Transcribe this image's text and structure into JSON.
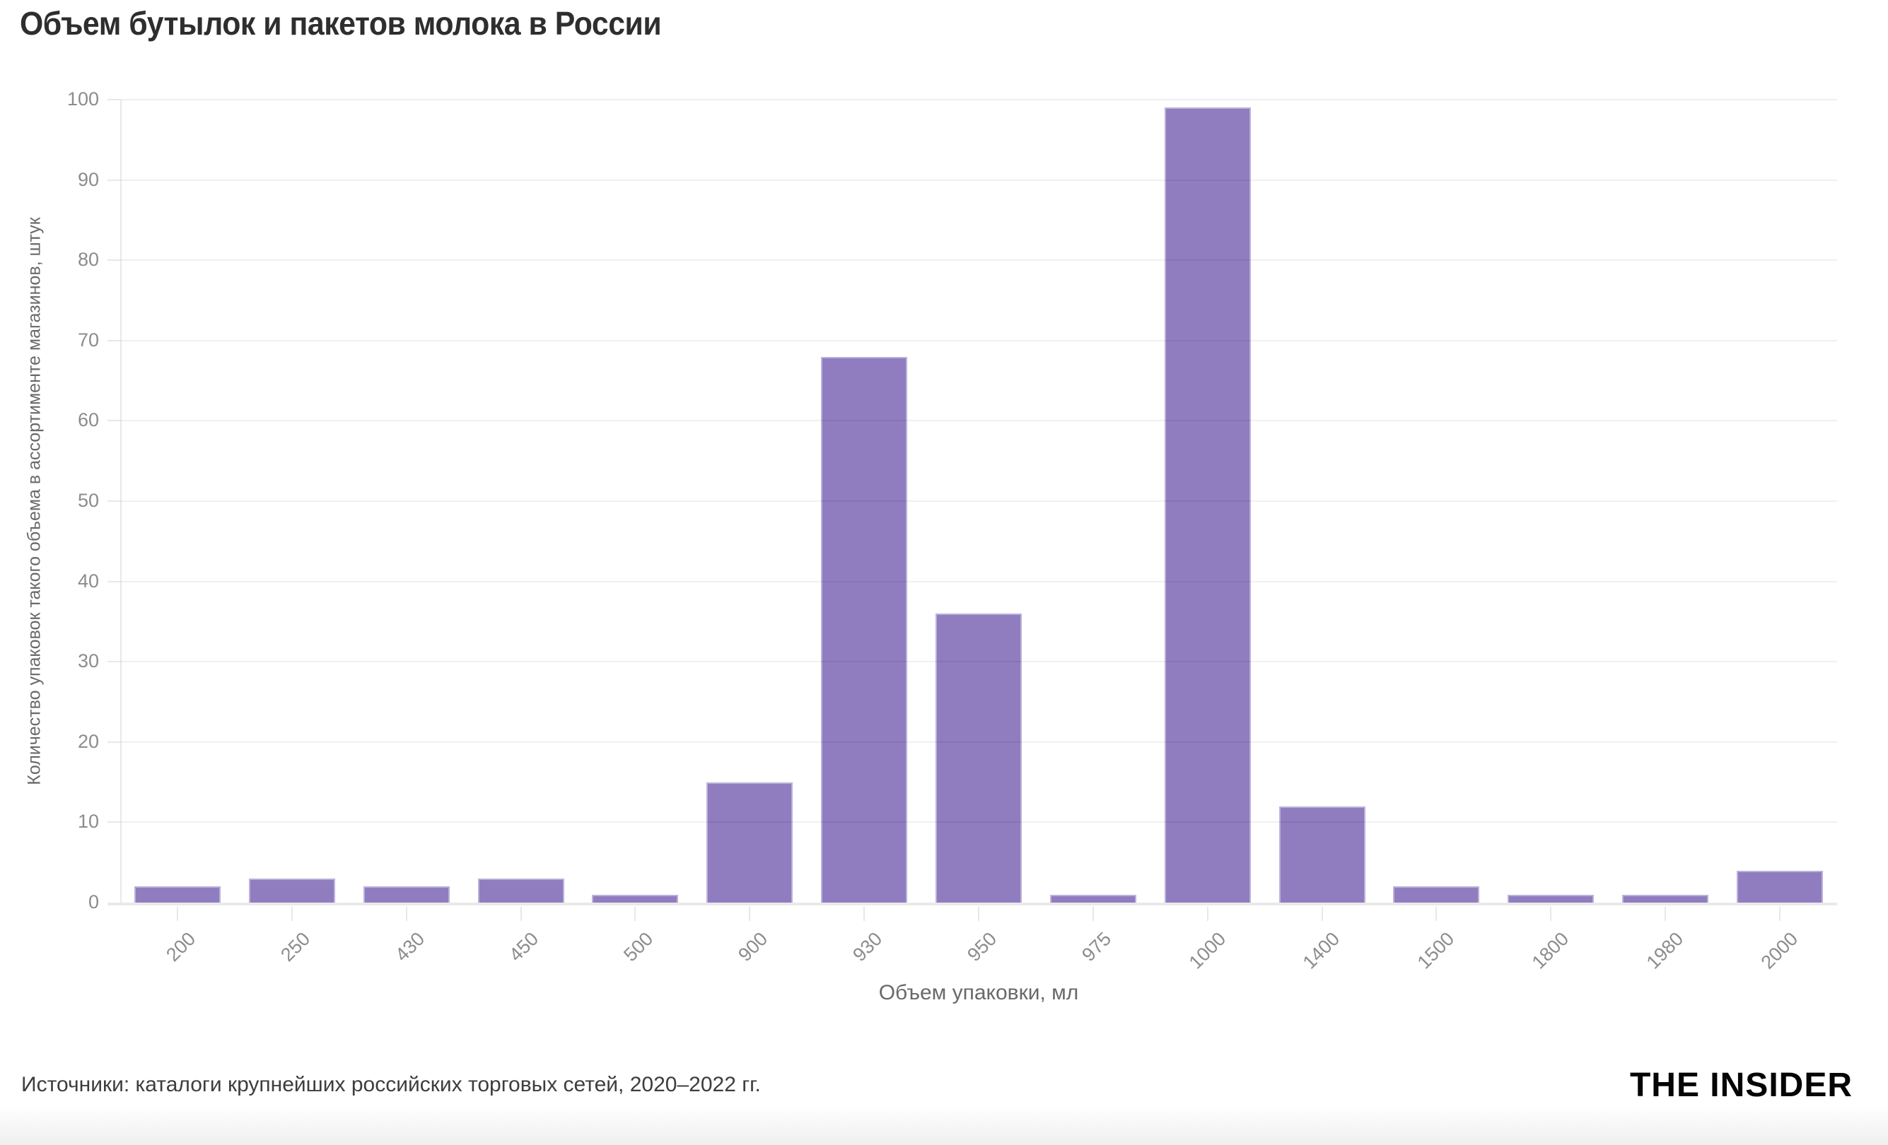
{
  "chart_data": {
    "type": "bar",
    "title": "Объем бутылок и пакетов молока в России",
    "categories": [
      "200",
      "250",
      "430",
      "450",
      "500",
      "900",
      "930",
      "950",
      "975",
      "1000",
      "1400",
      "1500",
      "1800",
      "1980",
      "2000"
    ],
    "values": [
      2,
      3,
      2,
      3,
      1,
      15,
      68,
      36,
      1,
      99,
      12,
      2,
      1,
      1,
      4
    ],
    "xlabel": "Объем упаковки, мл",
    "ylabel": "Количество упаковок такого объема в ассортименте магазинов, штук",
    "ylim": [
      0,
      100
    ],
    "y_ticks": [
      0,
      10,
      20,
      30,
      40,
      50,
      60,
      70,
      80,
      90,
      100
    ],
    "grid": true,
    "legend": false,
    "bar_color": "#8f7dc0"
  },
  "footer": {
    "source": "Источники: каталоги крупнейших российских торговых сетей, 2020–2022 гг.",
    "brand": "THE INSIDER"
  }
}
